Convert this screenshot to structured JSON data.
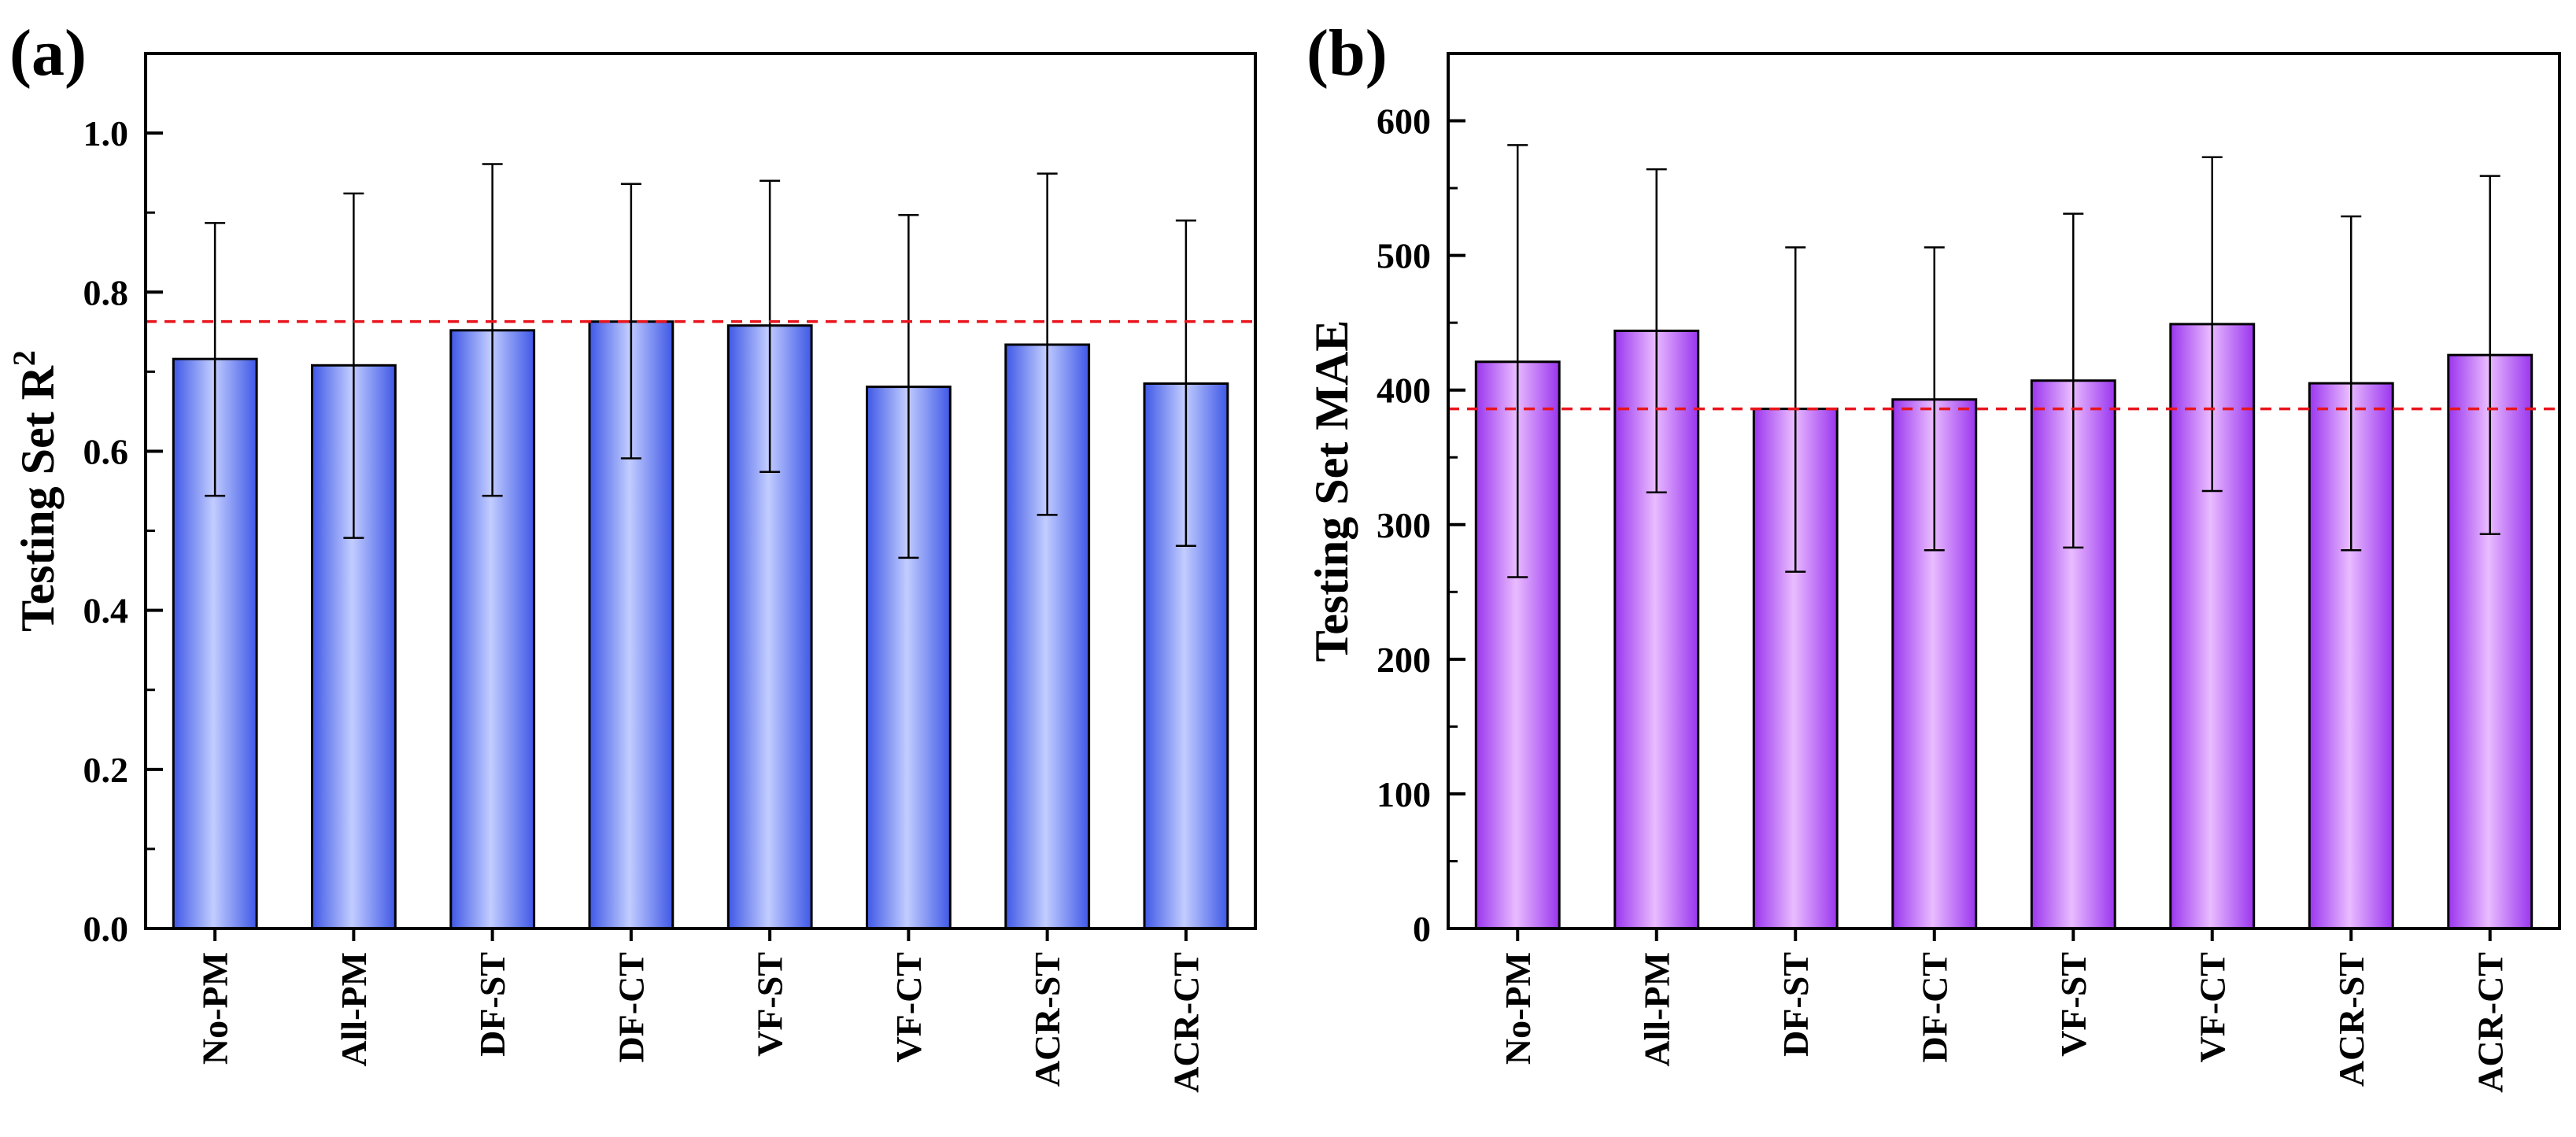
{
  "chart_data": [
    {
      "type": "bar",
      "panel_label": "(a)",
      "ylabel": "Testing Set R",
      "ylabel_sup": "2",
      "categories": [
        "No-PM",
        "All-PM",
        "DF-ST",
        "DF-CT",
        "VF-ST",
        "VF-CT",
        "ACR-ST",
        "ACR-CT"
      ],
      "values": [
        0.716,
        0.708,
        0.752,
        0.763,
        0.758,
        0.681,
        0.734,
        0.685
      ],
      "error_low": [
        0.544,
        0.491,
        0.544,
        0.591,
        0.574,
        0.466,
        0.52,
        0.481
      ],
      "error_high": [
        0.887,
        0.924,
        0.961,
        0.936,
        0.94,
        0.897,
        0.949,
        0.89
      ],
      "reference_line": 0.763,
      "ylim": [
        0,
        1.1
      ],
      "yticks": [
        "0.0",
        "0.2",
        "0.4",
        "0.6",
        "0.8",
        "1.0"
      ],
      "bar_color": "#3f58e6",
      "bar_highlight": "#c2cdff",
      "reference_color": "#e8141c",
      "legend": "none",
      "grid": false
    },
    {
      "type": "bar",
      "panel_label": "(b)",
      "ylabel": "Testing Set MAE",
      "ylabel_sup": "",
      "categories": [
        "No-PM",
        "All-PM",
        "DF-ST",
        "DF-CT",
        "VF-ST",
        "VF-CT",
        "ACR-ST",
        "ACR-CT"
      ],
      "values": [
        421,
        444,
        386,
        393,
        407,
        449,
        405,
        426
      ],
      "error_low": [
        261,
        324,
        265,
        281,
        283,
        325,
        281,
        293
      ],
      "error_high": [
        582,
        564,
        506,
        506,
        531,
        573,
        529,
        559
      ],
      "reference_line": 386,
      "ylim": [
        0,
        650
      ],
      "yticks": [
        "0",
        "100",
        "200",
        "300",
        "400",
        "500",
        "600"
      ],
      "bar_color": "#9a35ee",
      "bar_highlight": "#e9bcff",
      "reference_color": "#e8141c",
      "legend": "none",
      "grid": false
    }
  ]
}
